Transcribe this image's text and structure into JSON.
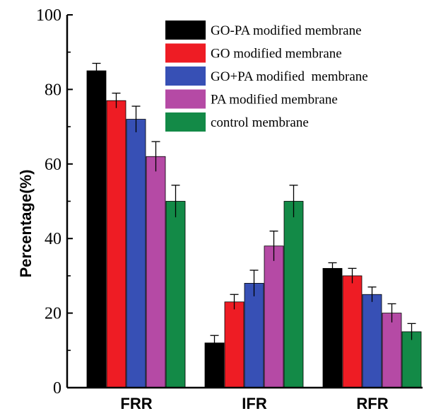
{
  "chart_data": {
    "type": "bar",
    "title": "",
    "xlabel": "",
    "ylabel": "Percentage(%)",
    "ylim": [
      0,
      100
    ],
    "yticks": [
      "0",
      "20",
      "40",
      "60",
      "80",
      "100"
    ],
    "categories": [
      "FRR",
      "IFR",
      "RFR"
    ],
    "grid": false,
    "legend_position": "top-right",
    "error_bars": true,
    "series": [
      {
        "name": "GO-PA modified membrane",
        "color": "#000000",
        "values": [
          85,
          12,
          32
        ],
        "errors": [
          2.0,
          2.0,
          1.5
        ]
      },
      {
        "name": "GO modified membrane",
        "color": "#ee1c24",
        "values": [
          77,
          23,
          30
        ],
        "errors": [
          2.0,
          2.0,
          2.0
        ]
      },
      {
        "name": "GO+PA modified  membrane",
        "color": "#3750b5",
        "values": [
          72,
          28,
          25
        ],
        "errors": [
          3.5,
          3.5,
          2.0
        ]
      },
      {
        "name": "PA modified membrane",
        "color": "#b54aa5",
        "values": [
          62,
          38,
          20
        ],
        "errors": [
          4.0,
          4.0,
          2.5
        ]
      },
      {
        "name": "control membrane",
        "color": "#138a47",
        "values": [
          50,
          50,
          15
        ],
        "errors": [
          4.3,
          4.3,
          2.2
        ]
      }
    ]
  }
}
